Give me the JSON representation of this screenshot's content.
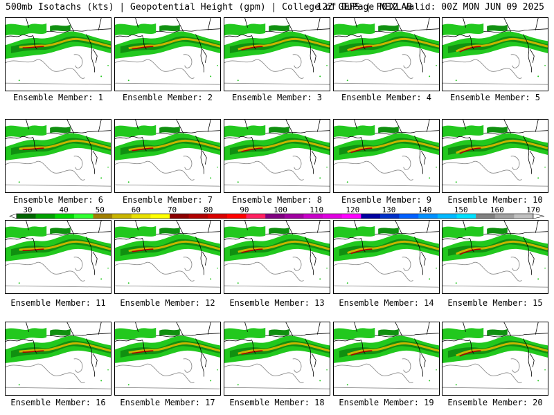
{
  "header": {
    "title_left": "500mb Isotachs (kts) | Geopotential Height (gpm) | College of DuPage NEXLAB",
    "title_right": "12Z GEFS | F012 Valid: 00Z MON JUN 09 2025"
  },
  "members": [
    {
      "label": "Ensemble Member: 1"
    },
    {
      "label": "Ensemble Member: 2"
    },
    {
      "label": "Ensemble Member: 3"
    },
    {
      "label": "Ensemble Member: 4"
    },
    {
      "label": "Ensemble Member: 5"
    },
    {
      "label": "Ensemble Member: 6"
    },
    {
      "label": "Ensemble Member: 7"
    },
    {
      "label": "Ensemble Member: 8"
    },
    {
      "label": "Ensemble Member: 9"
    },
    {
      "label": "Ensemble Member: 10"
    },
    {
      "label": "Ensemble Member: 11"
    },
    {
      "label": "Ensemble Member: 12"
    },
    {
      "label": "Ensemble Member: 13"
    },
    {
      "label": "Ensemble Member: 14"
    },
    {
      "label": "Ensemble Member: 15"
    },
    {
      "label": "Ensemble Member: 16"
    },
    {
      "label": "Ensemble Member: 17"
    },
    {
      "label": "Ensemble Member: 18"
    },
    {
      "label": "Ensemble Member: 19"
    },
    {
      "label": "Ensemble Member: 20"
    }
  ],
  "colorbar": {
    "tick_labels": [
      "30",
      "40",
      "50",
      "60",
      "70",
      "80",
      "90",
      "100",
      "110",
      "120",
      "130",
      "140",
      "150",
      "160",
      "170"
    ],
    "colors": [
      "#006400",
      "#00a000",
      "#00d800",
      "#30ff30",
      "#a08000",
      "#c8b400",
      "#e8e000",
      "#ffff00",
      "#8b0000",
      "#b00000",
      "#d80000",
      "#ff0000",
      "#ff2060",
      "#800080",
      "#a000a0",
      "#c800c8",
      "#e000e0",
      "#ff00ff",
      "#0000a0",
      "#0030c8",
      "#0060ff",
      "#0090ff",
      "#00b8ff",
      "#00e0ff",
      "#808080",
      "#a0a0a0",
      "#c0c0c0"
    ]
  }
}
